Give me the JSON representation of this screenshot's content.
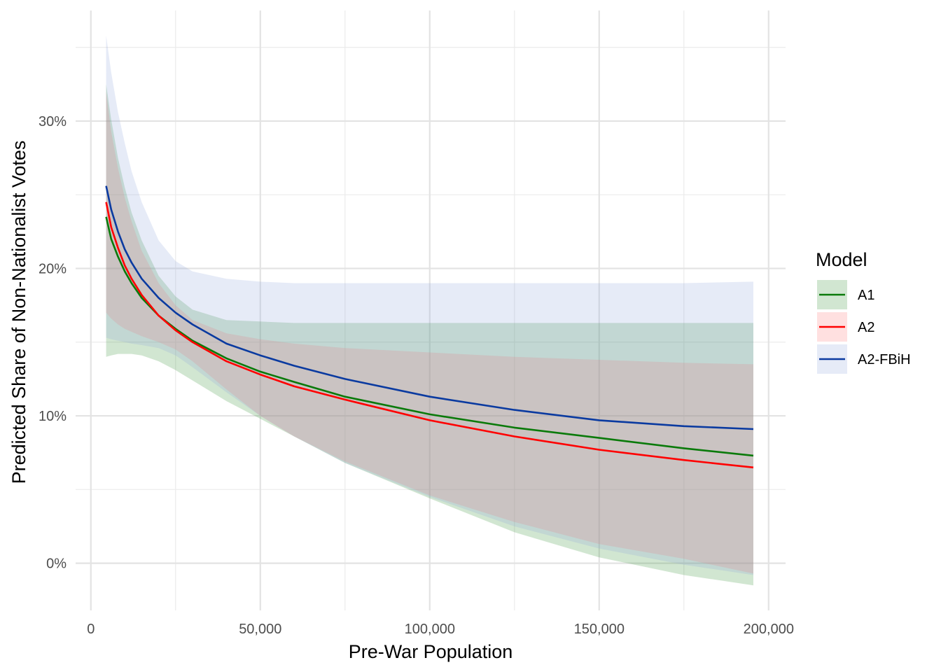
{
  "chart_data": {
    "type": "line",
    "xlabel": "Pre-War Population",
    "ylabel": "Predicted Share of Non-Nationalist Votes",
    "xlim": [
      -4500,
      205000
    ],
    "ylim": [
      -0.032,
      0.375
    ],
    "x_ticks": [
      {
        "value": 0,
        "label": "0"
      },
      {
        "value": 50000,
        "label": "50,000"
      },
      {
        "value": 100000,
        "label": "100,000"
      },
      {
        "value": 150000,
        "label": "150,000"
      },
      {
        "value": 200000,
        "label": "200,000"
      }
    ],
    "y_ticks": [
      {
        "value": 0,
        "label": "0%"
      },
      {
        "value": 0.1,
        "label": "10%"
      },
      {
        "value": 0.2,
        "label": "20%"
      },
      {
        "value": 0.3,
        "label": "30%"
      }
    ],
    "x_minor": [
      25000,
      75000,
      125000,
      175000
    ],
    "y_minor": [
      0.05,
      0.15,
      0.25,
      0.35
    ],
    "grid": true,
    "legend": {
      "title": "Model",
      "position": "right"
    },
    "x": [
      4500,
      6000,
      8000,
      10000,
      12000,
      15000,
      20000,
      25000,
      30000,
      40000,
      50000,
      60000,
      75000,
      100000,
      125000,
      150000,
      175000,
      195500
    ],
    "series": [
      {
        "name": "A1",
        "color": "#0a7a0a",
        "fill": "#2e8b2e",
        "values": [
          0.235,
          0.22,
          0.208,
          0.198,
          0.19,
          0.18,
          0.168,
          0.159,
          0.151,
          0.139,
          0.13,
          0.123,
          0.113,
          0.101,
          0.092,
          0.085,
          0.078,
          0.073
        ],
        "lower": [
          0.14,
          0.141,
          0.142,
          0.142,
          0.142,
          0.141,
          0.137,
          0.131,
          0.124,
          0.11,
          0.098,
          0.086,
          0.068,
          0.044,
          0.021,
          0.004,
          -0.008,
          -0.015
        ],
        "upper": [
          0.325,
          0.301,
          0.275,
          0.255,
          0.238,
          0.219,
          0.195,
          0.181,
          0.172,
          0.165,
          0.164,
          0.163,
          0.163,
          0.163,
          0.163,
          0.163,
          0.163,
          0.163
        ]
      },
      {
        "name": "A2",
        "color": "#ff0000",
        "fill": "#ff7070",
        "values": [
          0.245,
          0.228,
          0.214,
          0.202,
          0.193,
          0.182,
          0.168,
          0.158,
          0.15,
          0.137,
          0.128,
          0.12,
          0.111,
          0.097,
          0.086,
          0.077,
          0.07,
          0.065
        ],
        "lower": [
          0.17,
          0.166,
          0.162,
          0.159,
          0.157,
          0.154,
          0.15,
          0.145,
          0.137,
          0.118,
          0.1,
          0.086,
          0.069,
          0.046,
          0.028,
          0.013,
          0.003,
          -0.007
        ],
        "upper": [
          0.32,
          0.293,
          0.268,
          0.248,
          0.232,
          0.212,
          0.19,
          0.175,
          0.165,
          0.156,
          0.152,
          0.149,
          0.146,
          0.143,
          0.14,
          0.138,
          0.136,
          0.135
        ]
      },
      {
        "name": "A2-FBiH",
        "color": "#0a3aa0",
        "fill": "#8ea3dc",
        "values": [
          0.256,
          0.24,
          0.225,
          0.213,
          0.204,
          0.193,
          0.18,
          0.17,
          0.162,
          0.149,
          0.141,
          0.134,
          0.125,
          0.113,
          0.104,
          0.097,
          0.093,
          0.091
        ],
        "lower": [
          0.153,
          0.152,
          0.151,
          0.15,
          0.149,
          0.148,
          0.146,
          0.141,
          0.133,
          0.116,
          0.1,
          0.086,
          0.068,
          0.045,
          0.025,
          0.01,
          -0.001,
          -0.008
        ],
        "upper": [
          0.358,
          0.333,
          0.306,
          0.285,
          0.266,
          0.245,
          0.219,
          0.205,
          0.198,
          0.193,
          0.191,
          0.19,
          0.19,
          0.19,
          0.19,
          0.19,
          0.19,
          0.191
        ]
      }
    ]
  }
}
